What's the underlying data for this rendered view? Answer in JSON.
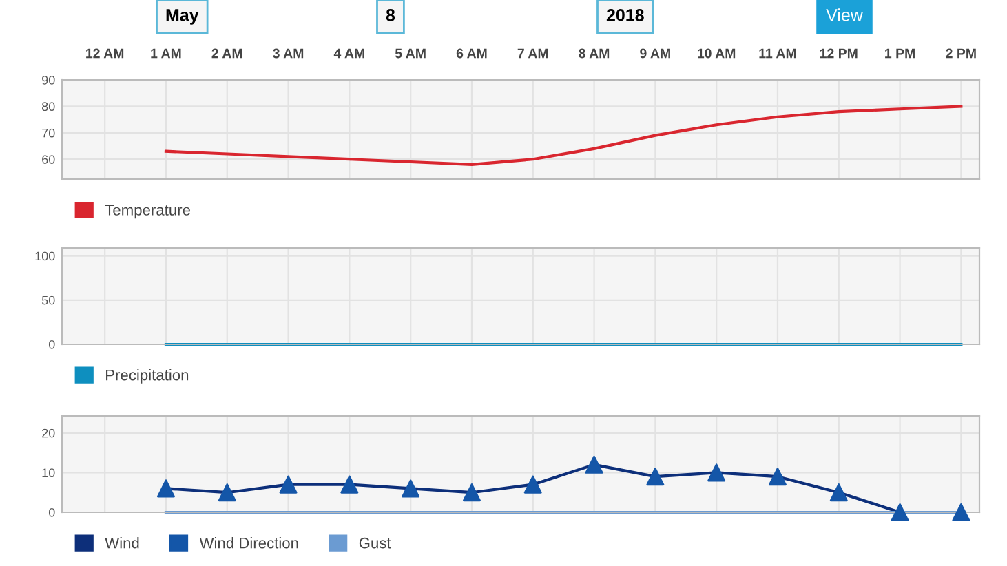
{
  "chart_data": [
    {
      "type": "line",
      "annotations": [
        "May",
        "8",
        "2018",
        "View"
      ],
      "categories": [
        "12 AM",
        "1 AM",
        "2 AM",
        "3 AM",
        "4 AM",
        "5 AM",
        "6 AM",
        "7 AM",
        "8 AM",
        "9 AM",
        "10 AM",
        "11 AM",
        "12 PM",
        "1 PM",
        "2 PM"
      ],
      "ylim": [
        52.5,
        90
      ],
      "yticks": [
        60,
        70,
        80,
        90
      ],
      "grid": true,
      "legend": "bottom left",
      "series": [
        {
          "name": "Temperature",
          "color": "#d9262f",
          "values": [
            null,
            63,
            62,
            61,
            60,
            59,
            58,
            60,
            64,
            69,
            73,
            76,
            78,
            79,
            80
          ]
        }
      ]
    },
    {
      "type": "line",
      "categories": [
        null,
        null,
        null,
        null,
        null,
        null,
        null,
        null,
        null,
        null,
        null,
        null,
        null,
        null,
        null
      ],
      "ylim": [
        0,
        109
      ],
      "yticks": [
        0,
        50,
        100
      ],
      "grid": true,
      "legend": "bottom left",
      "tick_labels": "y",
      "series": [
        {
          "name": "Precipitation",
          "color": "#0e8fbf",
          "values": [
            null,
            0,
            0,
            0,
            0,
            0,
            0,
            0,
            0,
            0,
            0,
            0,
            0,
            0,
            0
          ]
        }
      ]
    },
    {
      "type": "line",
      "categories": [
        null,
        null,
        null,
        null,
        null,
        null,
        null,
        null,
        null,
        null,
        null,
        null,
        null,
        null,
        null
      ],
      "ylim": [
        0,
        24.3
      ],
      "yticks": [
        0,
        10,
        20
      ],
      "grid": true,
      "legend": "bottom left",
      "tick_labels": "y",
      "series": [
        {
          "name": "Wind",
          "color": "#0d2f7a",
          "values": [
            null,
            6,
            5,
            7,
            7,
            6,
            5,
            7,
            12,
            9,
            10,
            9,
            5,
            0,
            0
          ]
        },
        {
          "name": "Wind Direction",
          "type": "scatter",
          "marker": "triangle",
          "color": "#1456a8",
          "values": [
            null,
            6,
            5,
            7,
            7,
            6,
            5,
            7,
            12,
            9,
            10,
            9,
            5,
            0,
            0
          ]
        },
        {
          "name": "Gust",
          "color": "#6b9bd2",
          "values": [
            null,
            0,
            0,
            0,
            0,
            0,
            0,
            0,
            0,
            0,
            0,
            0,
            0,
            0,
            0
          ]
        }
      ]
    }
  ]
}
